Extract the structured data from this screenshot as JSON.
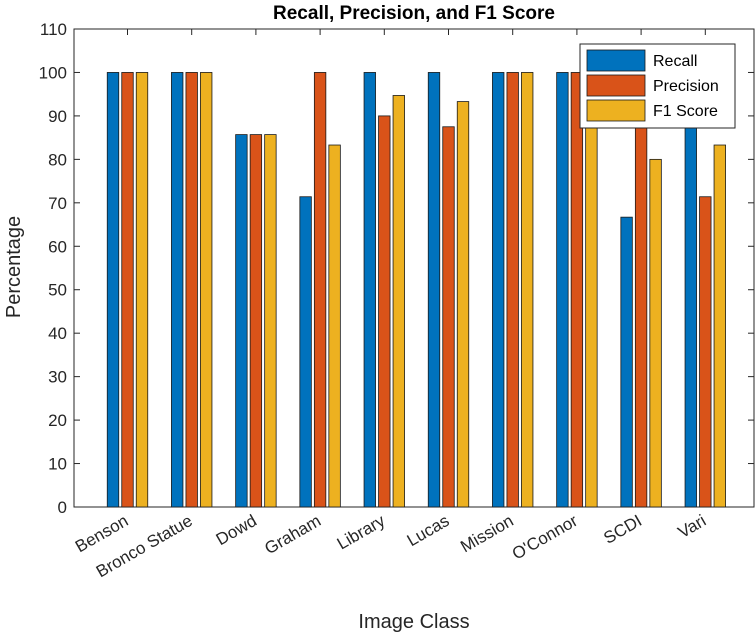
{
  "chart_data": {
    "type": "bar",
    "title": "Recall, Precision, and F1 Score",
    "xlabel": "Image Class",
    "ylabel": "Percentage",
    "ylim": [
      0,
      110
    ],
    "yticks": [
      0,
      10,
      20,
      30,
      40,
      50,
      60,
      70,
      80,
      90,
      100,
      110
    ],
    "grid": false,
    "legend_position": "top-right",
    "categories": [
      "Benson",
      "Bronco Statue",
      "Dowd",
      "Graham",
      "Library",
      "Lucas",
      "Mission",
      "O'Connor",
      "SCDI",
      "Vari"
    ],
    "series": [
      {
        "name": "Recall",
        "color": "#0072BD",
        "values": [
          100,
          100,
          85.7,
          71.4,
          100,
          100,
          100,
          100,
          66.7,
          100
        ]
      },
      {
        "name": "Precision",
        "color": "#D95319",
        "values": [
          100,
          100,
          85.7,
          100,
          90,
          87.5,
          100,
          100,
          100,
          71.4
        ]
      },
      {
        "name": "F1 Score",
        "color": "#EDB120",
        "values": [
          100,
          100,
          85.7,
          83.3,
          94.7,
          93.3,
          100,
          100,
          80,
          83.3
        ]
      }
    ]
  }
}
